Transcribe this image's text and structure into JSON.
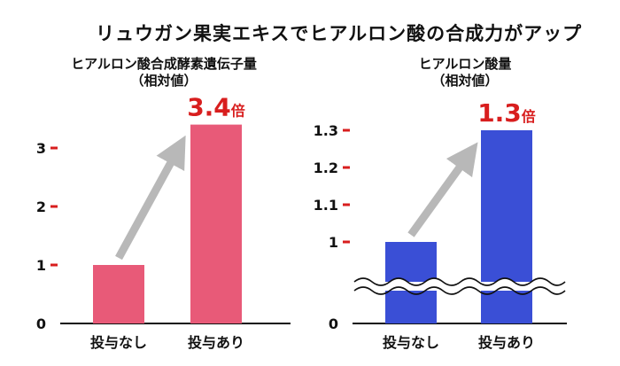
{
  "title": "リュウガン果実エキスでヒアルロン酸の合成力がアップ",
  "colors": {
    "left_bar": "#e85a78",
    "right_bar": "#3a4fd6",
    "tick_mark": "#d81e1e",
    "multiplier": "#d81e1e",
    "arrow": "#b8b8b8"
  },
  "chart_data": [
    {
      "type": "bar",
      "title_line1": "ヒアルロン酸合成酵素遺伝子量",
      "title_line2": "（相対値）",
      "categories": [
        "投与なし",
        "投与あり"
      ],
      "values": [
        1,
        3.4
      ],
      "yticks": [
        0,
        1,
        2,
        3
      ],
      "ylim": [
        0,
        3.5
      ],
      "annotation_value": "3.4",
      "annotation_unit": "倍"
    },
    {
      "type": "bar",
      "title_line1": "ヒアルロン酸量",
      "title_line2": "（相対値）",
      "categories": [
        "投与なし",
        "投与あり"
      ],
      "values": [
        1,
        1.3
      ],
      "yticks": [
        0,
        1,
        1.1,
        1.2,
        1.3
      ],
      "ylim": [
        0,
        1.3
      ],
      "axis_break": true,
      "annotation_value": "1.3",
      "annotation_unit": "倍"
    }
  ]
}
